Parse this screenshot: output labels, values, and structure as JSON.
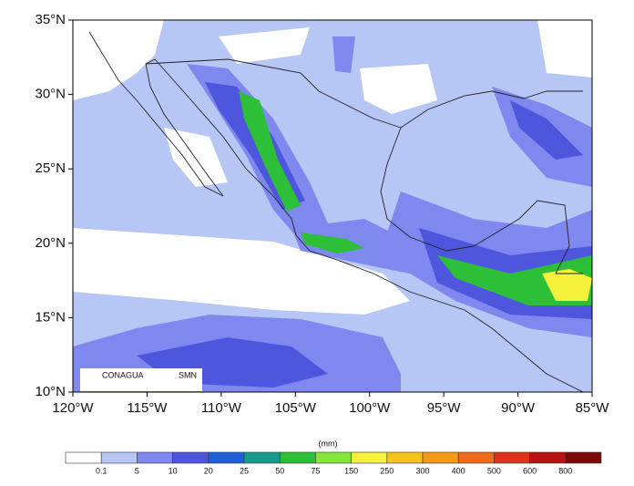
{
  "map": {
    "lat_labels": [
      "35°N",
      "30°N",
      "25°N",
      "20°N",
      "15°N",
      "10°N"
    ],
    "lon_labels": [
      "120°W",
      "115°W",
      "110°W",
      "105°W",
      "100°W",
      "95°W",
      "90°W",
      "85°W"
    ],
    "logos": [
      "CONAGUA",
      "SMN"
    ]
  },
  "colorbar": {
    "unit": "(mm)",
    "labels": [
      "0.1",
      "5",
      "10",
      "20",
      "25",
      "50",
      "75",
      "150",
      "250",
      "300",
      "400",
      "500",
      "600",
      "800"
    ],
    "colors": [
      "#ffffff",
      "#b6c6f5",
      "#7f88ee",
      "#4e56de",
      "#1f5fd8",
      "#169c8c",
      "#2cbf37",
      "#84e63a",
      "#f4f23a",
      "#f5c41c",
      "#f29a1a",
      "#ee6a1c",
      "#e0321a",
      "#b81212",
      "#7a0a0a"
    ]
  }
}
